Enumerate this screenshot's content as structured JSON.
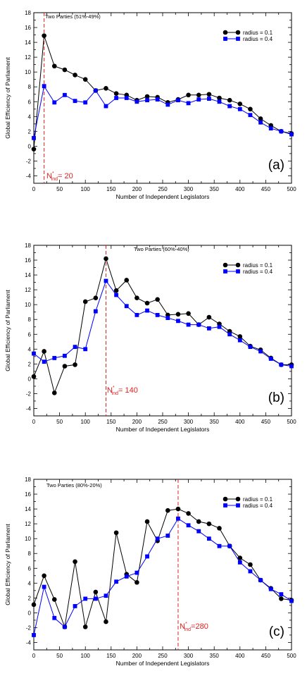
{
  "chart_data": [
    {
      "type": "line",
      "panel_label": "(a)",
      "title": "Two Parties (51%-49%)",
      "xlabel": "Number of Independent Legislators",
      "ylabel": "Global Efficiency of Parliament",
      "xlim": [
        0,
        500
      ],
      "ylim": [
        -5,
        18
      ],
      "x_ticks": [
        0,
        50,
        100,
        150,
        200,
        250,
        300,
        350,
        400,
        450,
        500
      ],
      "y_ticks": [
        -4,
        -2,
        0,
        2,
        4,
        6,
        8,
        10,
        12,
        14,
        16,
        18
      ],
      "grid": false,
      "legend_position": "top-right",
      "critical_line": {
        "x": 20,
        "label_main": "N",
        "label_sup": "*",
        "label_sub": "ind",
        "label_value": "= 20"
      },
      "series": [
        {
          "name": "radius = 0.1",
          "color": "#000000",
          "marker": "circle",
          "x": [
            0,
            20,
            40,
            60,
            80,
            100,
            120,
            140,
            160,
            180,
            200,
            220,
            240,
            260,
            280,
            300,
            320,
            340,
            360,
            380,
            400,
            420,
            440,
            460,
            480,
            500
          ],
          "y": [
            -0.4,
            14.9,
            10.8,
            10.3,
            9.6,
            9.0,
            7.5,
            7.8,
            7.1,
            6.9,
            6.2,
            6.7,
            6.6,
            5.9,
            6.3,
            6.9,
            6.9,
            7.0,
            6.5,
            6.2,
            5.7,
            5.0,
            3.7,
            2.8,
            2.0,
            1.7
          ]
        },
        {
          "name": "radius = 0.4",
          "color": "#0000ff",
          "marker": "square",
          "x": [
            0,
            20,
            40,
            60,
            80,
            100,
            120,
            140,
            160,
            180,
            200,
            220,
            240,
            260,
            280,
            300,
            320,
            340,
            360,
            380,
            400,
            420,
            440,
            460,
            480,
            500
          ],
          "y": [
            1.1,
            8.1,
            5.9,
            6.9,
            6.1,
            5.9,
            7.5,
            5.4,
            6.5,
            6.5,
            6.0,
            6.2,
            6.3,
            5.6,
            6.2,
            5.8,
            6.3,
            6.4,
            6.0,
            5.4,
            5.0,
            4.2,
            3.2,
            2.4,
            2.0,
            1.6
          ]
        }
      ]
    },
    {
      "type": "line",
      "panel_label": "(b)",
      "title": "Two Parties (60%-40%)",
      "xlabel": "Number of Independent Legislators",
      "ylabel": "Global Efficiency of Parliament",
      "xlim": [
        0,
        500
      ],
      "ylim": [
        -5,
        18
      ],
      "x_ticks": [
        0,
        50,
        100,
        150,
        200,
        250,
        300,
        350,
        400,
        450,
        500
      ],
      "y_ticks": [
        -4,
        -2,
        0,
        2,
        4,
        6,
        8,
        10,
        12,
        14,
        16,
        18
      ],
      "grid": false,
      "legend_position": "top-right",
      "critical_line": {
        "x": 140,
        "label_main": "N",
        "label_sup": "*",
        "label_sub": "ind",
        "label_value": "= 140"
      },
      "series": [
        {
          "name": "radius = 0.1",
          "color": "#000000",
          "marker": "circle",
          "x": [
            0,
            20,
            40,
            60,
            80,
            100,
            120,
            140,
            160,
            180,
            200,
            220,
            240,
            260,
            280,
            300,
            320,
            340,
            360,
            380,
            400,
            420,
            440,
            460,
            480,
            500
          ],
          "y": [
            0.3,
            3.7,
            -1.9,
            1.7,
            1.9,
            10.4,
            10.9,
            16.2,
            11.9,
            13.3,
            10.9,
            10.2,
            10.7,
            8.6,
            8.7,
            8.8,
            7.3,
            8.3,
            7.4,
            6.4,
            5.7,
            4.4,
            3.9,
            2.8,
            1.9,
            1.9
          ]
        },
        {
          "name": "radius = 0.4",
          "color": "#0000ff",
          "marker": "square",
          "x": [
            0,
            20,
            40,
            60,
            80,
            100,
            120,
            140,
            160,
            180,
            200,
            220,
            240,
            260,
            280,
            300,
            320,
            340,
            360,
            380,
            400,
            420,
            440,
            460,
            480,
            500
          ],
          "y": [
            3.4,
            2.3,
            2.8,
            3.1,
            4.3,
            4.0,
            9.1,
            13.2,
            11.3,
            9.8,
            8.6,
            9.2,
            8.6,
            8.2,
            7.8,
            7.3,
            7.3,
            6.8,
            7.0,
            6.0,
            5.2,
            4.3,
            3.7,
            2.7,
            1.9,
            1.7
          ]
        }
      ]
    },
    {
      "type": "line",
      "panel_label": "(c)",
      "title": "Two Parties (80%-20%)",
      "xlabel": "Number of Independent Legislators",
      "ylabel": "Global Efficiency of Parliament",
      "xlim": [
        0,
        500
      ],
      "ylim": [
        -5,
        18
      ],
      "x_ticks": [
        0,
        50,
        100,
        150,
        200,
        250,
        300,
        350,
        400,
        450,
        500
      ],
      "y_ticks": [
        -4,
        -2,
        0,
        2,
        4,
        6,
        8,
        10,
        12,
        14,
        16,
        18
      ],
      "grid": false,
      "legend_position": "top-right",
      "critical_line": {
        "x": 280,
        "label_main": "N",
        "label_sup": "*",
        "label_sub": "ind",
        "label_value": "=280"
      },
      "series": [
        {
          "name": "radius = 0.1",
          "color": "#000000",
          "marker": "circle",
          "x": [
            0,
            20,
            40,
            60,
            80,
            100,
            120,
            140,
            160,
            180,
            200,
            220,
            240,
            260,
            280,
            300,
            320,
            340,
            360,
            380,
            400,
            420,
            440,
            460,
            480,
            500
          ],
          "y": [
            1.1,
            5.0,
            1.8,
            -1.9,
            6.9,
            -1.9,
            2.8,
            -1.2,
            10.8,
            5.2,
            4.1,
            12.3,
            9.7,
            13.8,
            14.0,
            13.4,
            12.3,
            12.0,
            11.4,
            9.0,
            7.4,
            6.5,
            4.4,
            3.3,
            1.9,
            1.7
          ]
        },
        {
          "name": "radius = 0.4",
          "color": "#0000ff",
          "marker": "square",
          "x": [
            0,
            20,
            40,
            60,
            80,
            100,
            120,
            140,
            160,
            180,
            200,
            220,
            240,
            260,
            280,
            300,
            320,
            340,
            360,
            380,
            400,
            420,
            440,
            460,
            480,
            500
          ],
          "y": [
            -3.0,
            3.5,
            -0.7,
            -1.9,
            0.9,
            1.9,
            1.9,
            2.3,
            4.2,
            4.9,
            5.4,
            7.6,
            10.0,
            10.4,
            12.7,
            11.8,
            11.0,
            10.0,
            9.0,
            9.0,
            6.8,
            5.6,
            4.4,
            3.2,
            2.5,
            1.6
          ]
        }
      ]
    }
  ]
}
